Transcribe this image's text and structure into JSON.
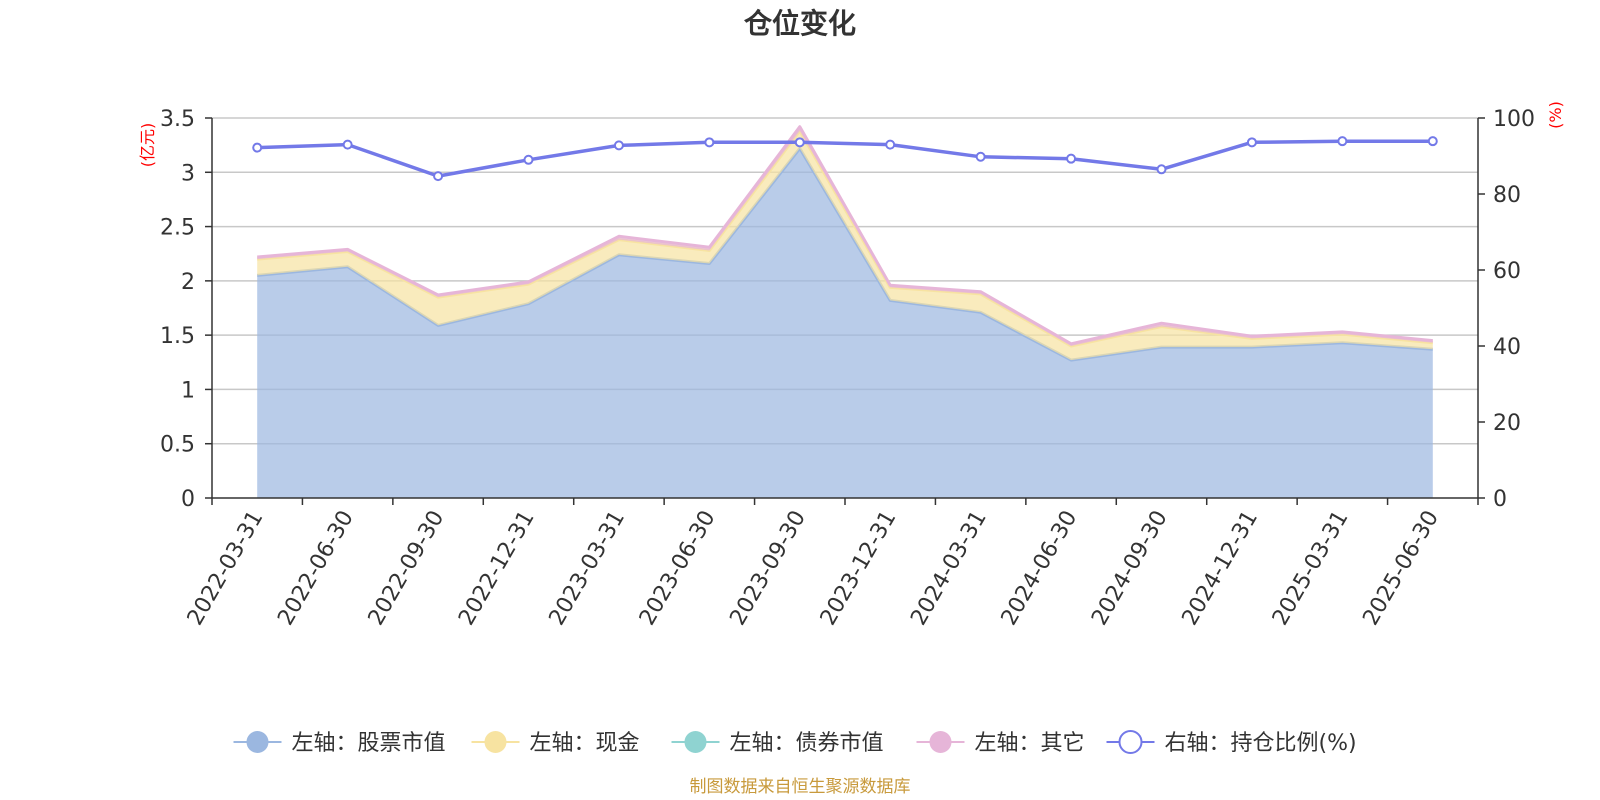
{
  "chart_data": {
    "type": "area",
    "title": "仓位变化",
    "left_unit": "(亿元)",
    "right_unit": "(%)",
    "categories": [
      "2022-03-31",
      "2022-06-30",
      "2022-09-30",
      "2022-12-31",
      "2023-03-31",
      "2023-06-30",
      "2023-09-30",
      "2023-12-31",
      "2024-03-31",
      "2024-06-30",
      "2024-09-30",
      "2024-12-31",
      "2025-03-31",
      "2025-06-30"
    ],
    "left_axis": {
      "min": 0,
      "max": 3.5,
      "ticks": [
        "0",
        "0.5",
        "1",
        "1.5",
        "2",
        "2.5",
        "3",
        "3.5"
      ]
    },
    "right_axis": {
      "min": 0,
      "max": 100,
      "ticks": [
        "0",
        "20",
        "40",
        "60",
        "80",
        "100"
      ]
    },
    "series": [
      {
        "name": "左轴：股票市值",
        "axis": "left",
        "stacked": true,
        "color": "#9bb7e0",
        "values": [
          2.05,
          2.13,
          1.59,
          1.79,
          2.24,
          2.16,
          3.22,
          1.82,
          1.71,
          1.27,
          1.39,
          1.39,
          1.43,
          1.37
        ]
      },
      {
        "name": "左轴：现金",
        "axis": "left",
        "stacked": true,
        "color": "#f7e3a1",
        "values": [
          0.15,
          0.14,
          0.26,
          0.18,
          0.14,
          0.12,
          0.16,
          0.12,
          0.17,
          0.13,
          0.19,
          0.08,
          0.08,
          0.06
        ]
      },
      {
        "name": "左轴：债券市值",
        "axis": "left",
        "stacked": true,
        "color": "#8fd3d1",
        "values": [
          0,
          0,
          0,
          0,
          0,
          0,
          0,
          0,
          0,
          0,
          0,
          0,
          0,
          0
        ]
      },
      {
        "name": "左轴：其它",
        "axis": "left",
        "stacked": true,
        "color": "#e6b5d8",
        "values": [
          0.02,
          0.02,
          0.02,
          0.02,
          0.03,
          0.03,
          0.04,
          0.02,
          0.02,
          0.02,
          0.03,
          0.02,
          0.02,
          0.02
        ]
      },
      {
        "name": "右轴：持仓比例(%)",
        "axis": "right",
        "type": "line",
        "color": "#7379e8",
        "values": [
          92.2,
          93.0,
          84.7,
          89.0,
          92.8,
          93.6,
          93.6,
          93.0,
          89.8,
          89.3,
          86.5,
          93.6,
          93.9,
          93.9
        ]
      }
    ],
    "legend_position": "bottom",
    "grid": true
  },
  "footer": {
    "source": "制图数据来自恒生聚源数据库"
  }
}
